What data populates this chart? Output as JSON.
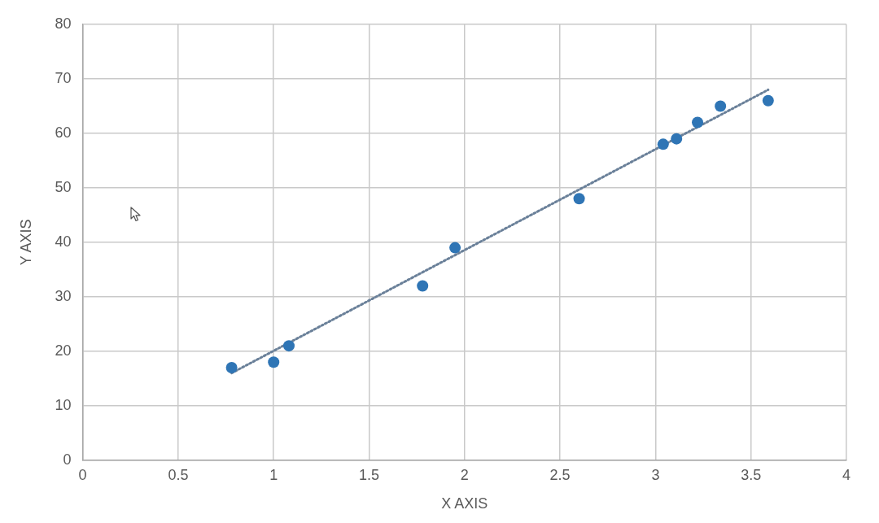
{
  "chart_data": {
    "type": "scatter",
    "xlabel": "X AXIS",
    "ylabel": "Y AXIS",
    "xlim": [
      0,
      4
    ],
    "xticks": [
      0,
      0.5,
      1,
      1.5,
      2,
      2.5,
      3,
      3.5,
      4
    ],
    "ylim": [
      0,
      80
    ],
    "yticks": [
      0,
      10,
      20,
      30,
      40,
      50,
      60,
      70,
      80
    ],
    "grid": true,
    "marker": "circle",
    "series": [
      {
        "color": "#2f75b5",
        "x": [
          0.78,
          1.0,
          1.08,
          1.78,
          1.95,
          2.6,
          3.04,
          3.11,
          3.22,
          3.34,
          3.59
        ],
        "values": [
          17,
          18,
          21,
          32,
          39,
          48,
          58,
          59,
          62,
          65,
          66
        ]
      },
      {
        "type": "line",
        "color": "#6a8099",
        "line_style": "dotted",
        "marker": "none",
        "x": [
          0.78,
          3.59
        ],
        "values": [
          16,
          68
        ]
      }
    ]
  }
}
